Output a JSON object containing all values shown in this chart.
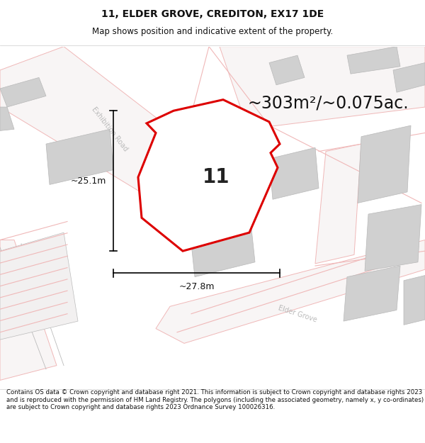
{
  "title": "11, ELDER GROVE, CREDITON, EX17 1DE",
  "subtitle": "Map shows position and indicative extent of the property.",
  "area_text": "~303m²/~0.075ac.",
  "dim_h": "~25.1m",
  "dim_w": "~27.8m",
  "label_11": "11",
  "footer": "Contains OS data © Crown copyright and database right 2021. This information is subject to Crown copyright and database rights 2023 and is reproduced with the permission of HM Land Registry. The polygons (including the associated geometry, namely x, y co-ordinates) are subject to Crown copyright and database rights 2023 Ordnance Survey 100026316.",
  "map_bg": "#f7f6f6",
  "plot_fill": "#ffffff",
  "plot_edge": "#dd0000",
  "road_color": "#f0b8b8",
  "road_fill": "#f9f4f4",
  "building_color": "#d0d0d0",
  "building_edge": "#b8b8b8",
  "title_fontsize": 10,
  "subtitle_fontsize": 8.5,
  "area_fontsize": 17,
  "label_fontsize": 20,
  "dim_fontsize": 9,
  "footer_fontsize": 6.2,
  "road_label_color": "#bbbbbb",
  "road_label_fontsize": 7
}
